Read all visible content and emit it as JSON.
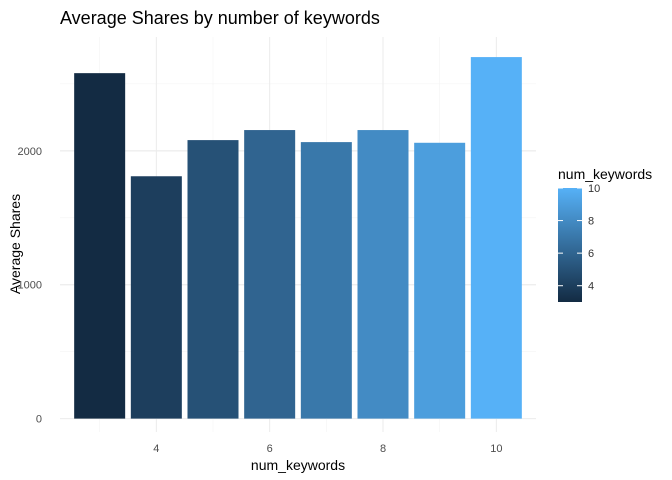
{
  "chart_data": {
    "type": "bar",
    "title": "Average Shares by number of keywords",
    "xlabel": "num_keywords",
    "ylabel": "Average Shares",
    "categories": [
      3,
      4,
      5,
      6,
      7,
      8,
      9,
      10
    ],
    "values": [
      2580,
      1810,
      2080,
      2155,
      2065,
      2155,
      2060,
      2700
    ],
    "x_ticks": [
      4,
      6,
      8,
      10
    ],
    "y_ticks": [
      0,
      1000,
      2000
    ],
    "xlim": [
      2.3,
      10.7
    ],
    "ylim": [
      -100,
      2850
    ],
    "grid": true,
    "legend": {
      "title": "num_keywords",
      "position": "right",
      "range": [
        3,
        10
      ],
      "ticks": [
        4,
        6,
        8,
        10
      ],
      "color_low": "#132B43",
      "color_high": "#56B1F7"
    }
  }
}
